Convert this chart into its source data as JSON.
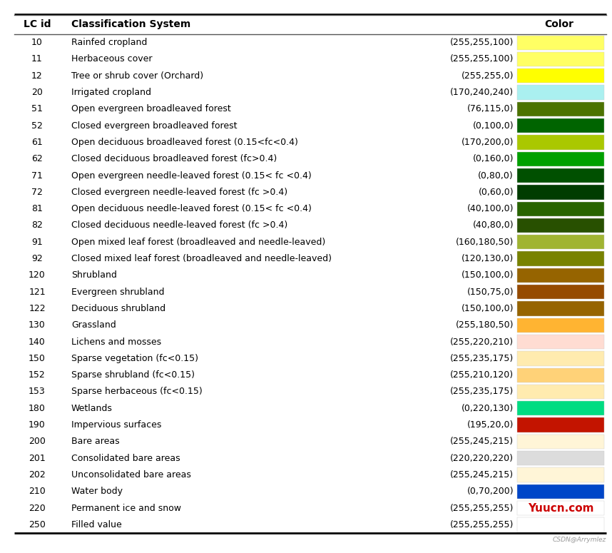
{
  "headers": [
    "LC id",
    "Classification System",
    "Color"
  ],
  "rows": [
    {
      "id": "10",
      "name": "Rainfed cropland",
      "color_str": "(255,255,100)",
      "rgb": [
        255,
        255,
        100
      ]
    },
    {
      "id": "11",
      "name": "Herbaceous cover",
      "color_str": "(255,255,100)",
      "rgb": [
        255,
        255,
        100
      ]
    },
    {
      "id": "12",
      "name": "Tree or shrub cover (Orchard)",
      "color_str": "(255,255,0)",
      "rgb": [
        255,
        255,
        0
      ]
    },
    {
      "id": "20",
      "name": "Irrigated cropland",
      "color_str": "(170,240,240)",
      "rgb": [
        170,
        240,
        240
      ]
    },
    {
      "id": "51",
      "name": "Open evergreen broadleaved forest",
      "color_str": "(76,115,0)",
      "rgb": [
        76,
        115,
        0
      ]
    },
    {
      "id": "52",
      "name": "Closed evergreen broadleaved forest",
      "color_str": "(0,100,0)",
      "rgb": [
        0,
        100,
        0
      ]
    },
    {
      "id": "61",
      "name": "Open deciduous broadleaved forest (0.15<fc<0.4)",
      "color_str": "(170,200,0)",
      "rgb": [
        170,
        200,
        0
      ]
    },
    {
      "id": "62",
      "name": "Closed deciduous broadleaved forest (fc>0.4)",
      "color_str": "(0,160,0)",
      "rgb": [
        0,
        160,
        0
      ]
    },
    {
      "id": "71",
      "name": "Open evergreen needle-leaved forest (0.15< fc <0.4)",
      "color_str": "(0,80,0)",
      "rgb": [
        0,
        80,
        0
      ]
    },
    {
      "id": "72",
      "name": "Closed evergreen needle-leaved forest (fc >0.4)",
      "color_str": "(0,60,0)",
      "rgb": [
        0,
        60,
        0
      ]
    },
    {
      "id": "81",
      "name": "Open deciduous needle-leaved forest (0.15< fc <0.4)",
      "color_str": "(40,100,0)",
      "rgb": [
        40,
        100,
        0
      ]
    },
    {
      "id": "82",
      "name": "Closed deciduous needle-leaved forest (fc >0.4)",
      "color_str": "(40,80,0)",
      "rgb": [
        40,
        80,
        0
      ]
    },
    {
      "id": "91",
      "name": "Open mixed leaf forest (broadleaved and needle-leaved)",
      "color_str": "(160,180,50)",
      "rgb": [
        160,
        180,
        50
      ]
    },
    {
      "id": "92",
      "name": "Closed mixed leaf forest (broadleaved and needle-leaved)",
      "color_str": "(120,130,0)",
      "rgb": [
        120,
        130,
        0
      ]
    },
    {
      "id": "120",
      "name": "Shrubland",
      "color_str": "(150,100,0)",
      "rgb": [
        150,
        100,
        0
      ]
    },
    {
      "id": "121",
      "name": "Evergreen shrubland",
      "color_str": "(150,75,0)",
      "rgb": [
        150,
        75,
        0
      ]
    },
    {
      "id": "122",
      "name": "Deciduous shrubland",
      "color_str": "(150,100,0)",
      "rgb": [
        150,
        100,
        0
      ]
    },
    {
      "id": "130",
      "name": "Grassland",
      "color_str": "(255,180,50)",
      "rgb": [
        255,
        180,
        50
      ]
    },
    {
      "id": "140",
      "name": "Lichens and mosses",
      "color_str": "(255,220,210)",
      "rgb": [
        255,
        220,
        210
      ]
    },
    {
      "id": "150",
      "name": "Sparse vegetation (fc<0.15)",
      "color_str": "(255,235,175)",
      "rgb": [
        255,
        235,
        175
      ]
    },
    {
      "id": "152",
      "name": "Sparse shrubland (fc<0.15)",
      "color_str": "(255,210,120)",
      "rgb": [
        255,
        210,
        120
      ]
    },
    {
      "id": "153",
      "name": "Sparse herbaceous (fc<0.15)",
      "color_str": "(255,235,175)",
      "rgb": [
        255,
        235,
        175
      ]
    },
    {
      "id": "180",
      "name": "Wetlands",
      "color_str": "(0,220,130)",
      "rgb": [
        0,
        220,
        130
      ]
    },
    {
      "id": "190",
      "name": "Impervious surfaces",
      "color_str": "(195,20,0)",
      "rgb": [
        195,
        20,
        0
      ]
    },
    {
      "id": "200",
      "name": "Bare areas",
      "color_str": "(255,245,215)",
      "rgb": [
        255,
        245,
        215
      ]
    },
    {
      "id": "201",
      "name": "Consolidated bare areas",
      "color_str": "(220,220,220)",
      "rgb": [
        220,
        220,
        220
      ]
    },
    {
      "id": "202",
      "name": "Unconsolidated bare areas",
      "color_str": "(255,245,215)",
      "rgb": [
        255,
        245,
        215
      ]
    },
    {
      "id": "210",
      "name": "Water body",
      "color_str": "(0,70,200)",
      "rgb": [
        0,
        70,
        200
      ]
    },
    {
      "id": "220",
      "name": "Permanent ice and snow",
      "color_str": "(255,255,255)",
      "rgb": [
        255,
        255,
        255
      ],
      "watermark": true
    },
    {
      "id": "250",
      "name": "Filled value",
      "color_str": "(255,255,255)",
      "rgb": [
        255,
        255,
        255
      ]
    }
  ],
  "bg_color": "#ffffff",
  "text_color": "#000000",
  "header_text_color": "#000000",
  "watermark": "Yuucn.com",
  "watermark_color": "#cc0000",
  "footer": "CSDN@Arrymlez",
  "footer_color": "#999999",
  "border_color": "#000000",
  "inner_line_color": "#555555"
}
